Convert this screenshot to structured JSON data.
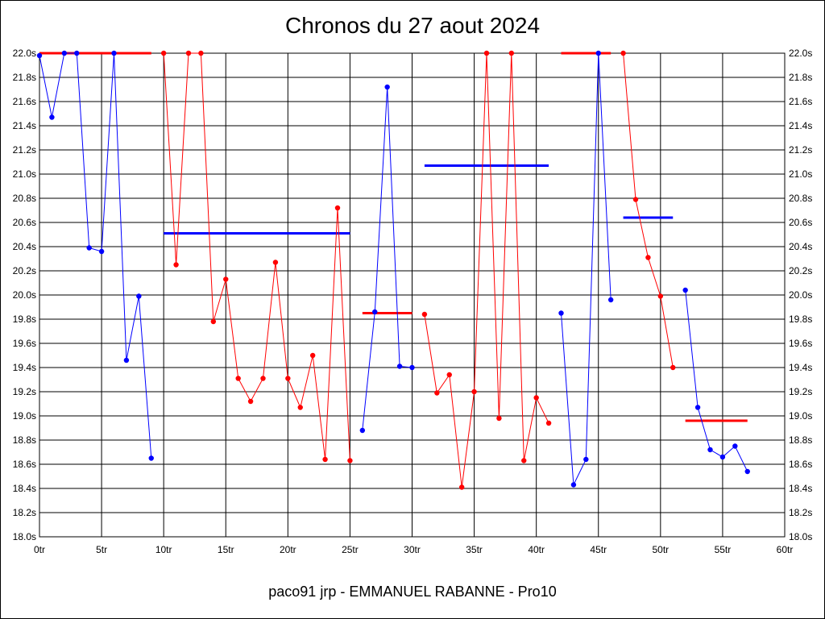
{
  "chart_data": {
    "type": "line",
    "title": "Chronos du 27 aout 2024",
    "subtitle": "paco91 jrp - EMMANUEL RABANNE - Pro10",
    "xlabel": "",
    "ylabel": "",
    "xlim": [
      0,
      60
    ],
    "ylim": [
      18.0,
      22.0
    ],
    "x_ticks": [
      0,
      5,
      10,
      15,
      20,
      25,
      30,
      35,
      40,
      45,
      50,
      55,
      60
    ],
    "x_tick_labels": [
      "0tr",
      "5tr",
      "10tr",
      "15tr",
      "20tr",
      "25tr",
      "30tr",
      "35tr",
      "40tr",
      "45tr",
      "50tr",
      "55tr",
      "60tr"
    ],
    "y_ticks": [
      18.0,
      18.2,
      18.4,
      18.6,
      18.8,
      19.0,
      19.2,
      19.4,
      19.6,
      19.8,
      20.0,
      20.2,
      20.4,
      20.6,
      20.8,
      21.0,
      21.2,
      21.4,
      21.6,
      21.8,
      22.0
    ],
    "y_tick_labels": [
      "18.0s",
      "18.2s",
      "18.4s",
      "18.6s",
      "18.8s",
      "19.0s",
      "19.2s",
      "19.4s",
      "19.6s",
      "19.8s",
      "20.0s",
      "20.2s",
      "20.4s",
      "20.6s",
      "20.8s",
      "21.0s",
      "21.2s",
      "21.4s",
      "21.6s",
      "21.8s",
      "22.0s"
    ],
    "grid": true,
    "colors": {
      "blue": "#0000ff",
      "red": "#ff0000"
    },
    "series": [
      {
        "color": "#0000ff",
        "points": [
          [
            0,
            21.98
          ],
          [
            1,
            21.47
          ],
          [
            2,
            22.0
          ],
          [
            3,
            22.0
          ],
          [
            4,
            20.39
          ],
          [
            5,
            20.36
          ],
          [
            6,
            22.0
          ],
          [
            7,
            19.46
          ],
          [
            8,
            19.99
          ],
          [
            9,
            18.65
          ]
        ]
      },
      {
        "color": "#ff0000",
        "points": [
          [
            10,
            22.0
          ],
          [
            11,
            20.25
          ],
          [
            12,
            22.0
          ],
          [
            13,
            22.0
          ],
          [
            14,
            19.78
          ],
          [
            15,
            20.13
          ],
          [
            16,
            19.31
          ],
          [
            17,
            19.12
          ],
          [
            18,
            19.31
          ],
          [
            19,
            20.27
          ],
          [
            20,
            19.31
          ],
          [
            21,
            19.07
          ],
          [
            22,
            19.5
          ],
          [
            23,
            18.64
          ],
          [
            24,
            20.72
          ],
          [
            25,
            18.63
          ]
        ]
      },
      {
        "color": "#0000ff",
        "points": [
          [
            26,
            18.88
          ],
          [
            27,
            19.86
          ],
          [
            28,
            21.72
          ],
          [
            29,
            19.41
          ],
          [
            30,
            19.4
          ]
        ]
      },
      {
        "color": "#ff0000",
        "points": [
          [
            31,
            19.84
          ],
          [
            32,
            19.19
          ],
          [
            33,
            19.34
          ],
          [
            34,
            18.41
          ],
          [
            35,
            19.2
          ],
          [
            36,
            22.0
          ],
          [
            37,
            18.98
          ],
          [
            38,
            22.0
          ],
          [
            39,
            18.63
          ],
          [
            40,
            19.15
          ],
          [
            41,
            18.94
          ]
        ]
      },
      {
        "color": "#0000ff",
        "points": [
          [
            42,
            19.85
          ],
          [
            43,
            18.43
          ],
          [
            44,
            18.64
          ],
          [
            45,
            22.0
          ],
          [
            46,
            19.96
          ]
        ]
      },
      {
        "color": "#ff0000",
        "points": [
          [
            47,
            22.0
          ],
          [
            48,
            20.79
          ],
          [
            49,
            20.31
          ],
          [
            50,
            19.99
          ],
          [
            51,
            19.4
          ]
        ]
      },
      {
        "color": "#0000ff",
        "points": [
          [
            52,
            20.04
          ],
          [
            53,
            19.07
          ],
          [
            54,
            18.72
          ],
          [
            55,
            18.66
          ],
          [
            56,
            18.75
          ],
          [
            57,
            18.54
          ]
        ]
      }
    ],
    "averages": [
      {
        "color": "#ff0000",
        "x": [
          0,
          9
        ],
        "y": 22.0
      },
      {
        "color": "#0000ff",
        "x": [
          10,
          25
        ],
        "y": 20.51
      },
      {
        "color": "#ff0000",
        "x": [
          26,
          30
        ],
        "y": 19.85
      },
      {
        "color": "#0000ff",
        "x": [
          31,
          41
        ],
        "y": 21.07
      },
      {
        "color": "#ff0000",
        "x": [
          42,
          46
        ],
        "y": 22.0
      },
      {
        "color": "#0000ff",
        "x": [
          47,
          51
        ],
        "y": 20.64
      },
      {
        "color": "#ff0000",
        "x": [
          52,
          57
        ],
        "y": 18.96
      }
    ]
  }
}
